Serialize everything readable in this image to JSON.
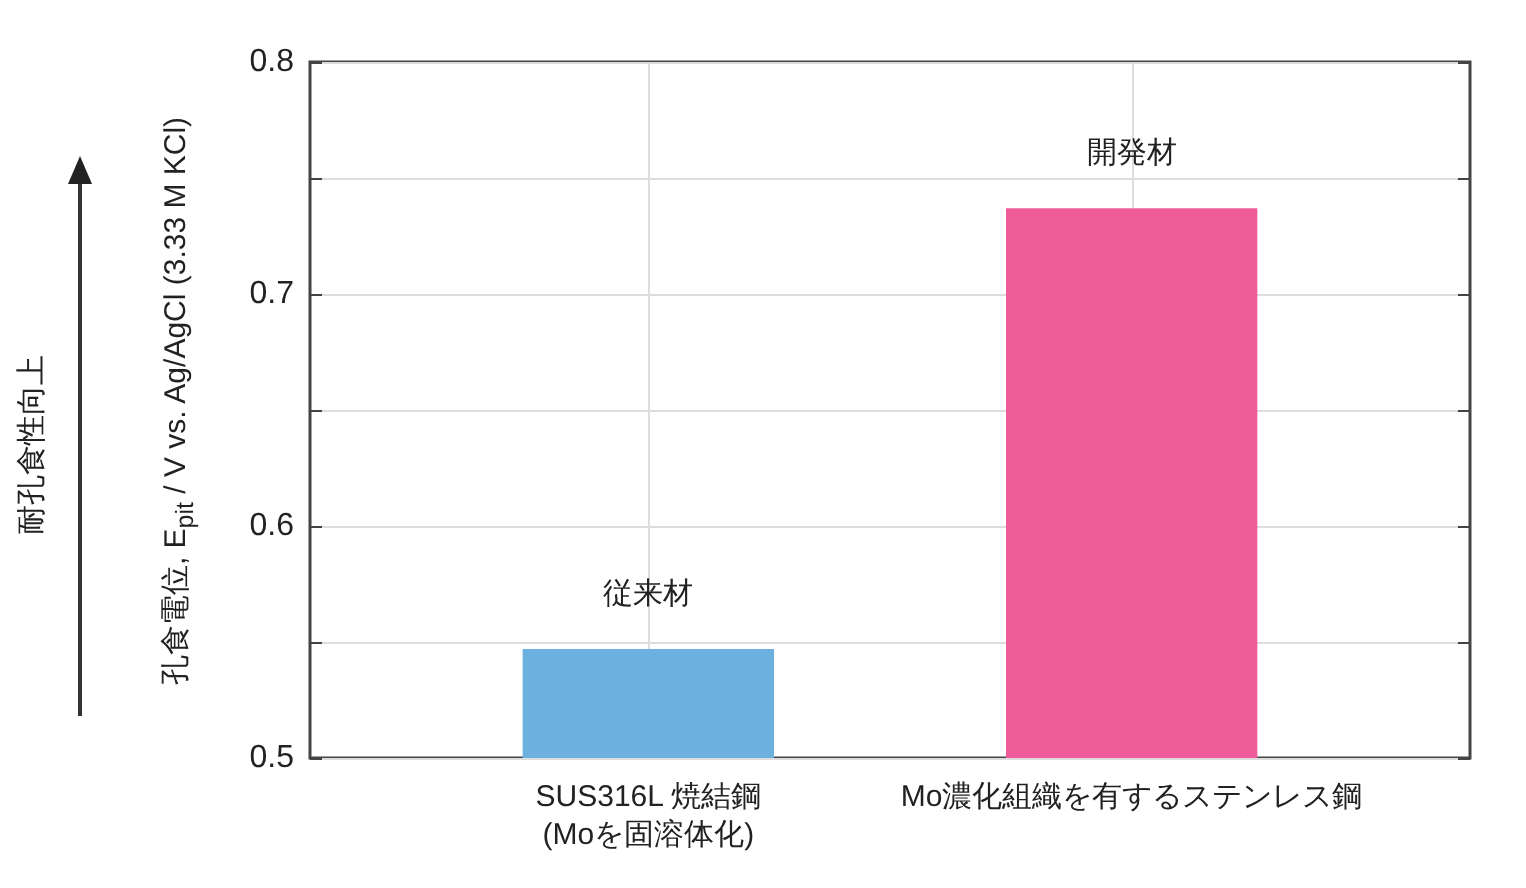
{
  "chart_data": {
    "type": "bar",
    "ylabel": "孔食電位, E$_{pit}$ / V vs. Ag/AgCl (3.33 M KCl)",
    "categories": [
      "SUS316L 焼結鋼\n(Moを固溶体化)",
      "Mo濃化組織を有するステンレス鋼"
    ],
    "values": [
      0.547,
      0.737
    ],
    "colors": [
      "#6cb0e0",
      "#ef5a98"
    ],
    "value_labels": [
      "従来材",
      "開発材"
    ],
    "ylim": [
      0.5,
      0.8
    ],
    "yticks": [
      0.5,
      {
        "value": 0.55,
        "label": null
      },
      0.6,
      {
        "value": 0.65,
        "label": null
      },
      0.7,
      {
        "value": 0.75,
        "label": null
      },
      0.8
    ],
    "grid": true,
    "annotations": [
      "耐孔食性向上"
    ]
  }
}
